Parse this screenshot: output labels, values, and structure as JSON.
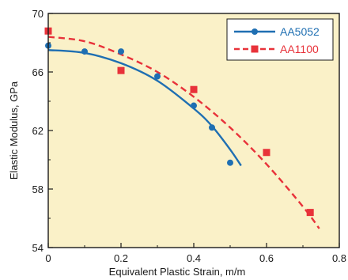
{
  "chart_data": {
    "type": "scatter",
    "title": "",
    "xlabel": "Equivalent Plastic Strain, m/m",
    "ylabel": "Elastic Modulus, GPa",
    "xlim": [
      0,
      0.8
    ],
    "ylim": [
      54,
      70
    ],
    "x_ticks": [
      0,
      0.2,
      0.4,
      0.6,
      0.8
    ],
    "x_tick_labels": [
      "0",
      "0.2",
      "0.4",
      "0.6",
      "0.8"
    ],
    "y_ticks": [
      54,
      58,
      62,
      66,
      70
    ],
    "y_tick_labels": [
      "54",
      "58",
      "62",
      "66",
      "70"
    ],
    "grid": false,
    "legend_position": "top-right",
    "plot_background": "#faf1c8",
    "series": [
      {
        "name": "AA5052",
        "color": "#1f6fb2",
        "marker": "circle",
        "line_style": "solid",
        "points": [
          {
            "x": 0,
            "y": 67.8
          },
          {
            "x": 0.1,
            "y": 67.4
          },
          {
            "x": 0.2,
            "y": 67.4
          },
          {
            "x": 0.3,
            "y": 65.7
          },
          {
            "x": 0.4,
            "y": 63.7
          },
          {
            "x": 0.45,
            "y": 62.2
          },
          {
            "x": 0.5,
            "y": 59.8
          }
        ],
        "fit_curve": [
          {
            "x": 0,
            "y": 67.5
          },
          {
            "x": 0.1,
            "y": 67.3
          },
          {
            "x": 0.2,
            "y": 66.6
          },
          {
            "x": 0.3,
            "y": 65.4
          },
          {
            "x": 0.4,
            "y": 63.5
          },
          {
            "x": 0.45,
            "y": 62.3
          },
          {
            "x": 0.5,
            "y": 60.7
          },
          {
            "x": 0.53,
            "y": 59.6
          }
        ]
      },
      {
        "name": "AA1100",
        "color": "#e8323a",
        "marker": "square",
        "line_style": "dashed",
        "points": [
          {
            "x": 0,
            "y": 68.8
          },
          {
            "x": 0.2,
            "y": 66.1
          },
          {
            "x": 0.4,
            "y": 64.8
          },
          {
            "x": 0.6,
            "y": 60.5
          },
          {
            "x": 0.72,
            "y": 56.4
          }
        ],
        "fit_curve": [
          {
            "x": 0,
            "y": 68.4
          },
          {
            "x": 0.1,
            "y": 68.1
          },
          {
            "x": 0.2,
            "y": 67.2
          },
          {
            "x": 0.3,
            "y": 66.0
          },
          {
            "x": 0.4,
            "y": 64.3
          },
          {
            "x": 0.5,
            "y": 62.2
          },
          {
            "x": 0.6,
            "y": 59.7
          },
          {
            "x": 0.7,
            "y": 56.8
          },
          {
            "x": 0.745,
            "y": 55.3
          }
        ]
      }
    ]
  }
}
